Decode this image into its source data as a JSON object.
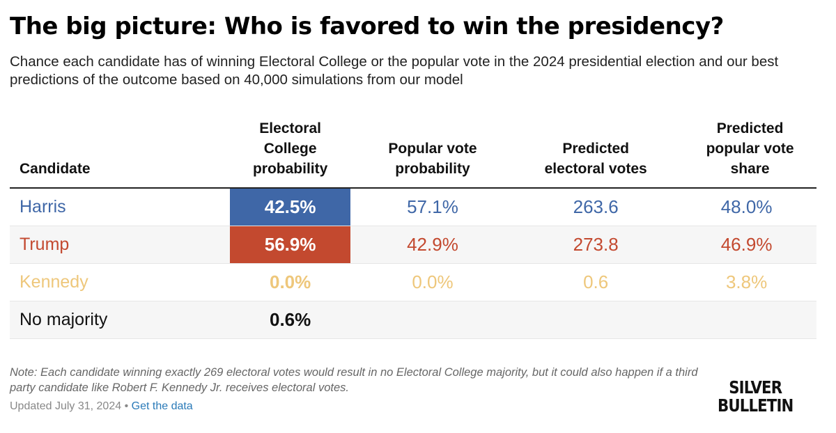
{
  "title": "The big picture: Who is favored to win the presidency?",
  "subtitle": "Chance each candidate has of winning Electoral College or the popular vote in the 2024 presidential election and our best predictions of the outcome based on 40,000 simulations from our model",
  "colors": {
    "harris": "#3f67a7",
    "trump": "#c3492f",
    "kennedy": "#eec77b",
    "none": "#111111"
  },
  "chart_data": {
    "type": "table",
    "columns": [
      "Candidate",
      "Electoral College probability",
      "Popular vote probability",
      "Predicted electoral votes",
      "Predicted popular vote share"
    ],
    "rows": [
      {
        "candidate": "Harris",
        "ec": "42.5%",
        "pv": "57.1%",
        "ev": "263.6",
        "share": "48.0%"
      },
      {
        "candidate": "Trump",
        "ec": "56.9%",
        "pv": "42.9%",
        "ev": "273.8",
        "share": "46.9%"
      },
      {
        "candidate": "Kennedy",
        "ec": "0.0%",
        "pv": "0.0%",
        "ev": "0.6",
        "share": "3.8%"
      },
      {
        "candidate": "No majority",
        "ec": "0.6%",
        "pv": "",
        "ev": "",
        "share": ""
      }
    ]
  },
  "note": "Note: Each candidate winning exactly 269 electoral votes would result in no Electoral College majority, but it could also happen if a third party candidate like Robert F. Kennedy Jr. receives electoral votes.",
  "updated": "Updated July 31, 2024",
  "separator": "•",
  "get_data": "Get the data",
  "logo": [
    "SILVER",
    "BULLETIN"
  ]
}
